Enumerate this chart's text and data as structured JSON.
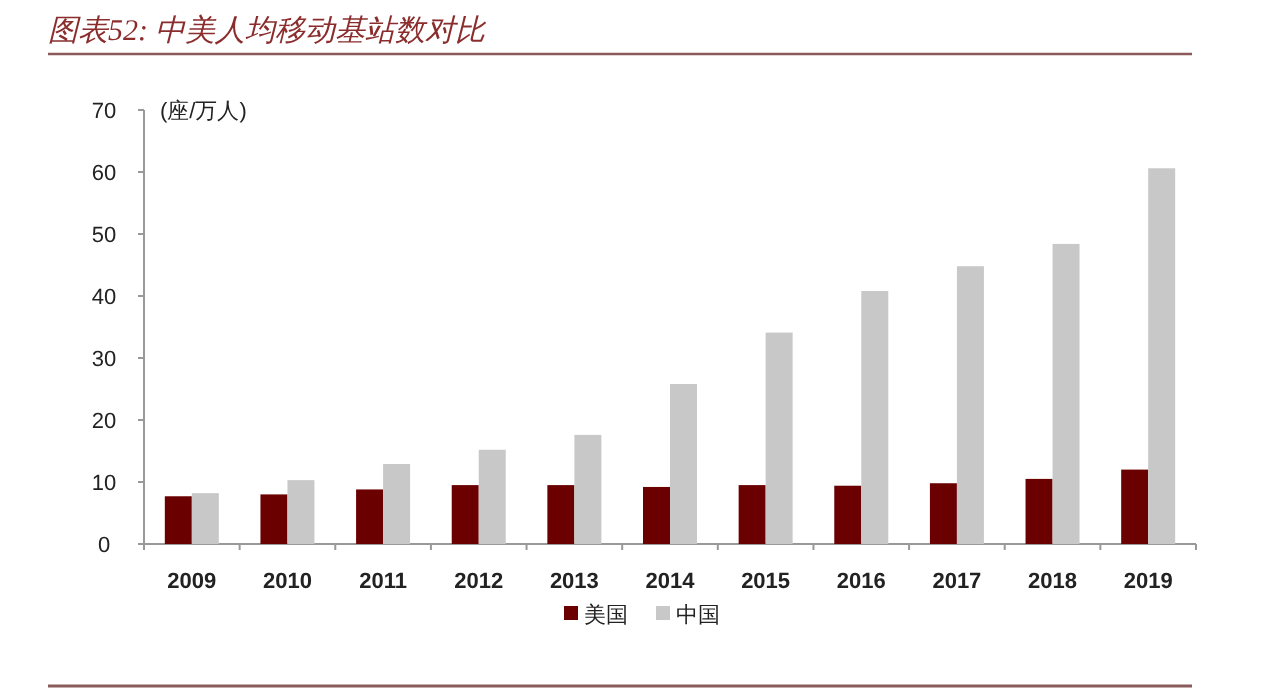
{
  "chart_data": {
    "type": "bar",
    "title": "图表52: 中美人均移动基站数对比",
    "ylabel": "(座/万人)",
    "categories": [
      "2009",
      "2010",
      "2011",
      "2012",
      "2013",
      "2014",
      "2015",
      "2016",
      "2017",
      "2018",
      "2019"
    ],
    "series": [
      {
        "name": "美国",
        "color": "#6b0000",
        "values": [
          7.7,
          8.0,
          8.8,
          9.5,
          9.5,
          9.2,
          9.5,
          9.4,
          9.8,
          10.5,
          12.0
        ]
      },
      {
        "name": "中国",
        "color": "#c8c8c8",
        "values": [
          8.2,
          10.3,
          12.9,
          15.2,
          17.6,
          25.8,
          34.1,
          40.8,
          44.8,
          48.4,
          60.6
        ]
      }
    ],
    "ylim": [
      0,
      70
    ],
    "yticks": [
      0,
      10,
      20,
      30,
      40,
      50,
      60,
      70
    ],
    "grid": false,
    "legend": "bottom"
  }
}
